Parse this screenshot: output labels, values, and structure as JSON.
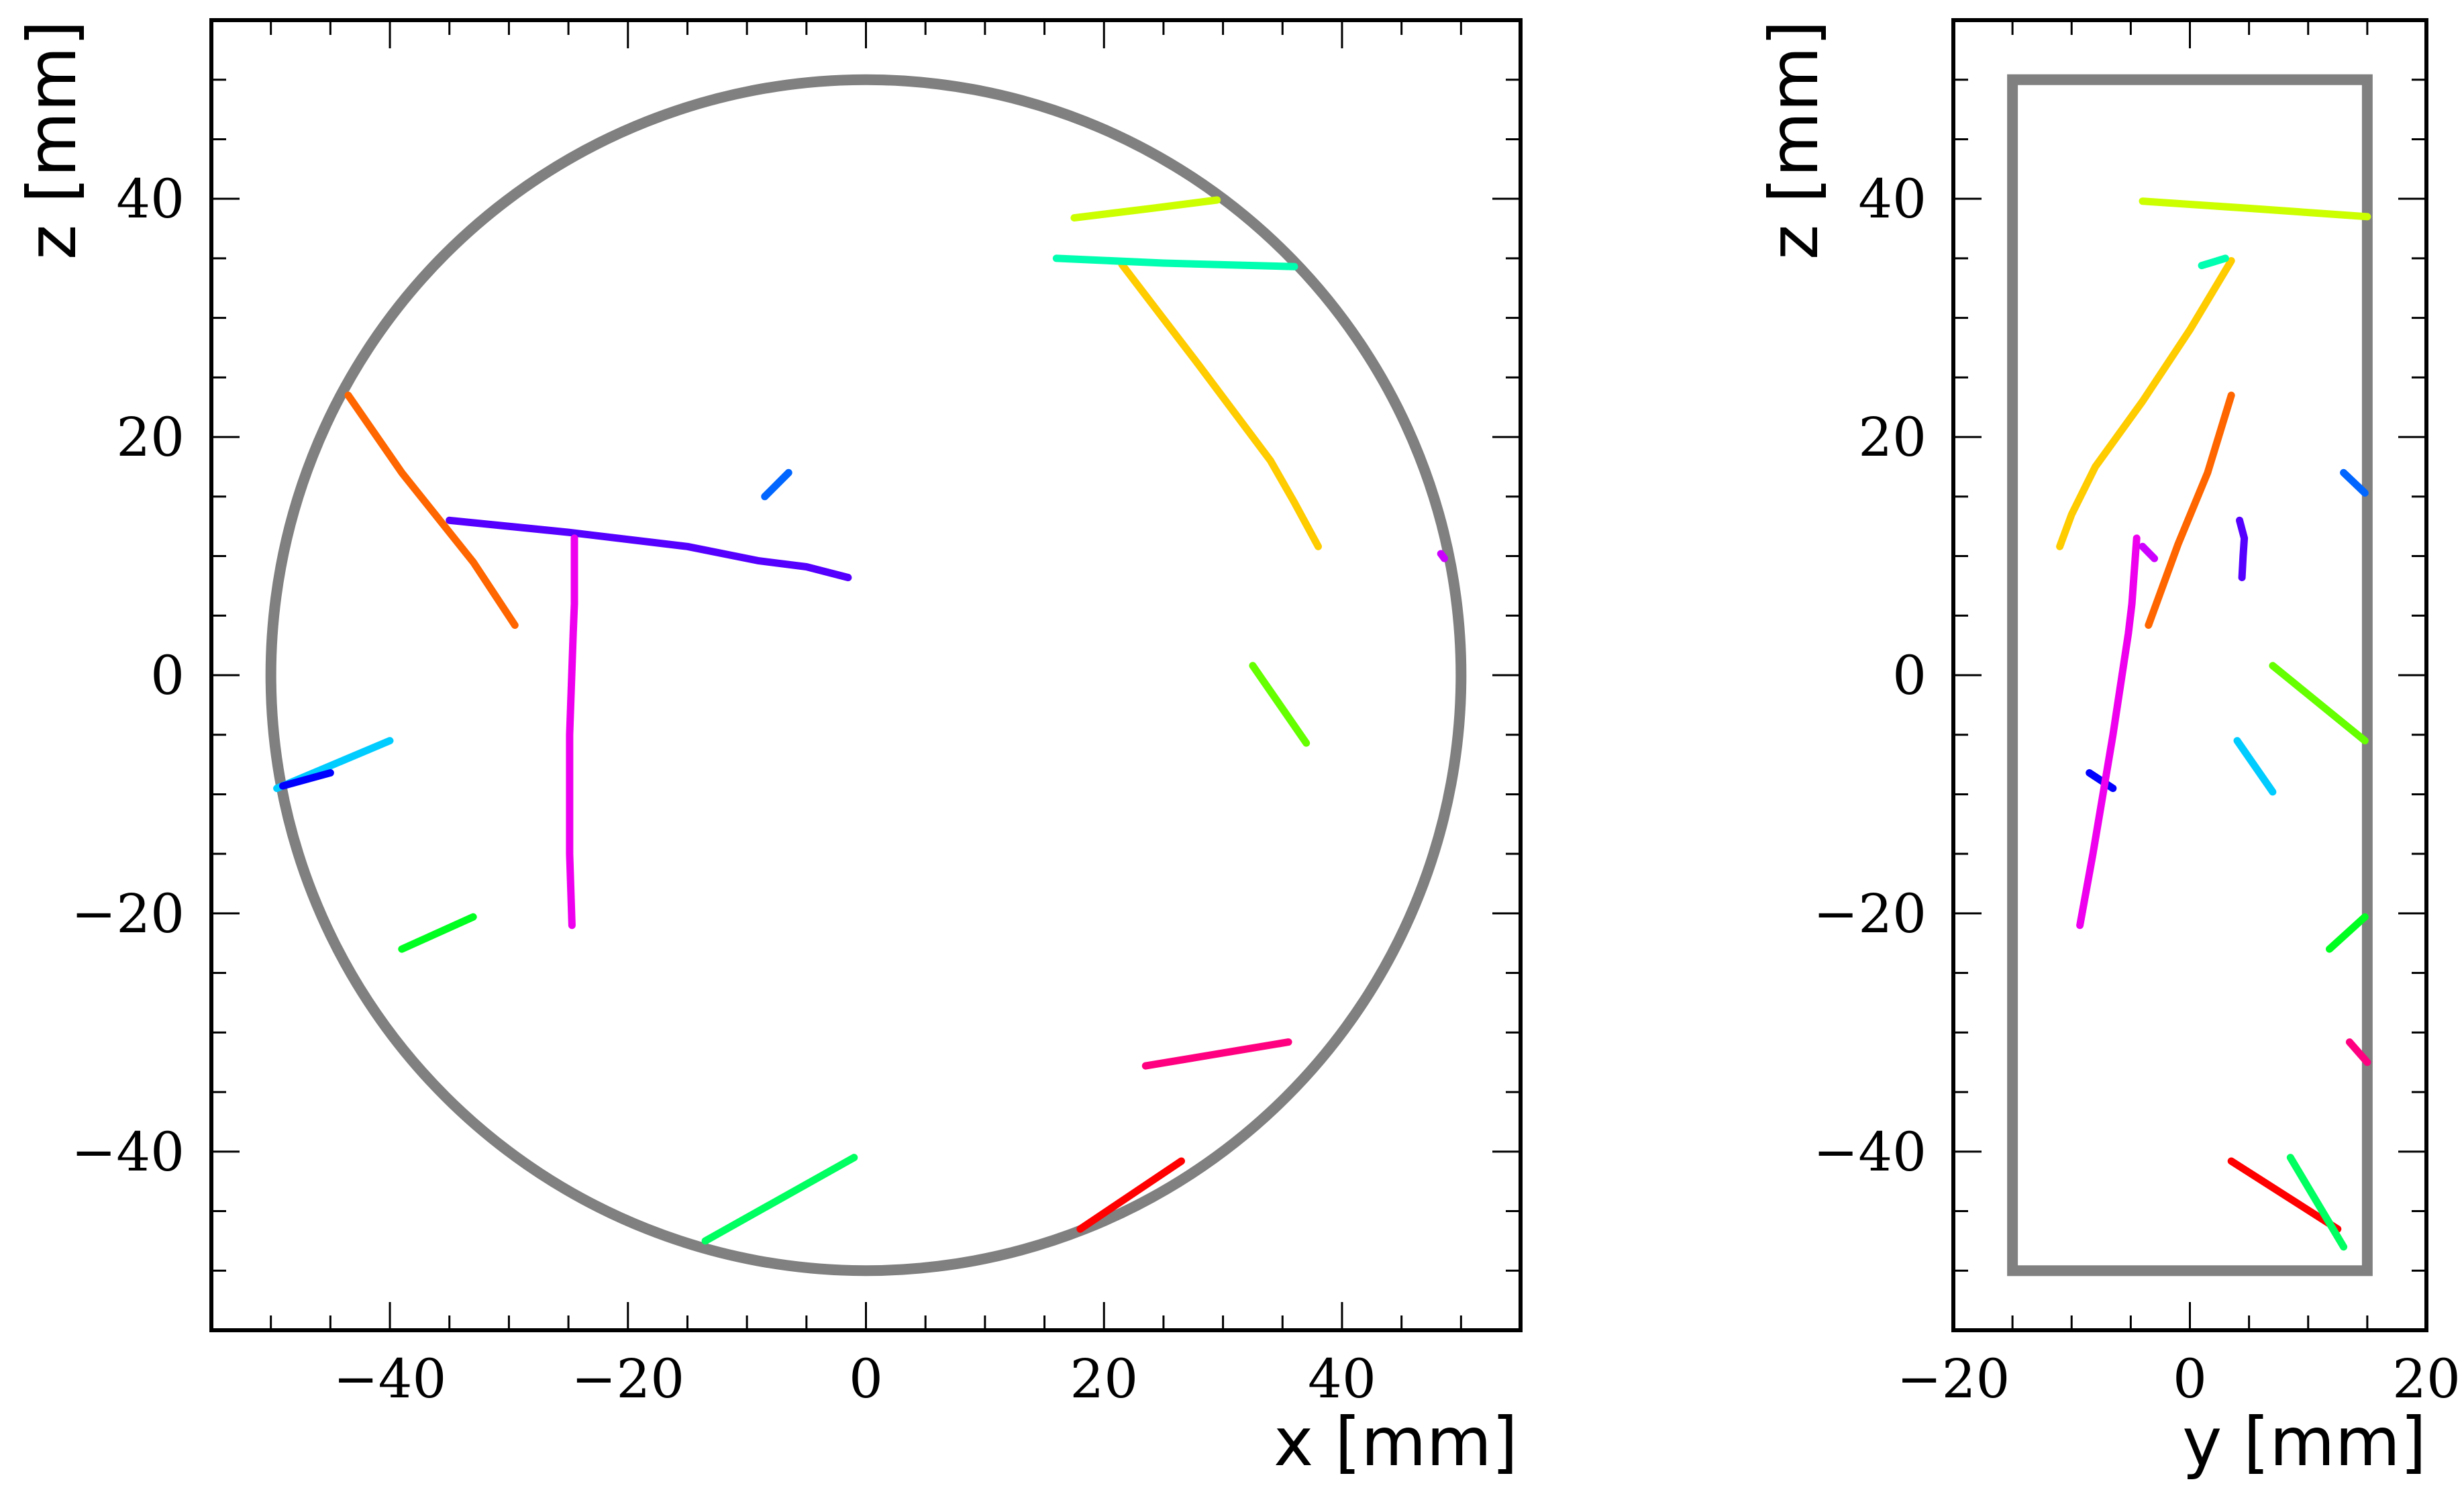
{
  "chart_data": [
    {
      "type": "scatter",
      "title": "",
      "xlabel": "x [mm]",
      "ylabel": "z [mm]",
      "xlim": [
        -55,
        55
      ],
      "ylim": [
        -55,
        55
      ],
      "xticks": [
        -40,
        -20,
        0,
        20,
        40
      ],
      "yticks": [
        -40,
        -20,
        0,
        20,
        40
      ],
      "xtick_labels": [
        "−40",
        "−20",
        "0",
        "20",
        "40"
      ],
      "ytick_labels": [
        "−40",
        "−20",
        "0",
        "20",
        "40"
      ],
      "grid": false,
      "boundary": {
        "shape": "circle",
        "center": [
          0,
          0
        ],
        "radius": 50,
        "color": "#808080"
      },
      "tracks": [
        {
          "color": "#ff0000",
          "points": [
            [
              18,
              -46.5
            ],
            [
              26.5,
              -40.8
            ]
          ]
        },
        {
          "color": "#ff0080",
          "points": [
            [
              23.5,
              -32.8
            ],
            [
              35.5,
              -30.8
            ]
          ]
        },
        {
          "color": "#00ff60",
          "points": [
            [
              -13.5,
              -47.5
            ],
            [
              -1,
              -40.5
            ]
          ]
        },
        {
          "color": "#00ff20",
          "points": [
            [
              -39,
              -23
            ],
            [
              -33,
              -20.3
            ]
          ]
        },
        {
          "color": "#00ccff",
          "points": [
            [
              -49.5,
              -9.5
            ],
            [
              -40,
              -5.5
            ]
          ]
        },
        {
          "color": "#0000ff",
          "points": [
            [
              -49,
              -9.3
            ],
            [
              -45,
              -8.2
            ]
          ]
        },
        {
          "color": "#66ff00",
          "points": [
            [
              32.5,
              0.8
            ],
            [
              37,
              -5.7
            ]
          ]
        },
        {
          "color": "#ff6600",
          "points": [
            [
              -43.5,
              23.5
            ],
            [
              -39,
              17
            ],
            [
              -33,
              9.5
            ],
            [
              -29.5,
              4.2
            ]
          ]
        },
        {
          "color": "#5500ff",
          "points": [
            [
              -35,
              13
            ],
            [
              -25,
              12
            ],
            [
              -15,
              10.8
            ],
            [
              -9,
              9.6
            ],
            [
              -5,
              9.1
            ],
            [
              -1.5,
              8.2
            ]
          ]
        },
        {
          "color": "#ee00ee",
          "points": [
            [
              -24.5,
              11.5
            ],
            [
              -24.5,
              6
            ],
            [
              -24.6,
              3.5
            ],
            [
              -24.9,
              -5
            ],
            [
              -24.9,
              -15
            ],
            [
              -24.7,
              -21
            ]
          ]
        },
        {
          "color": "#0066ff",
          "points": [
            [
              -8.5,
              15
            ],
            [
              -6.5,
              17
            ]
          ]
        },
        {
          "color": "#ffcc00",
          "points": [
            [
              21.5,
              34.5
            ],
            [
              28,
              26
            ],
            [
              34,
              18
            ],
            [
              36,
              14.5
            ],
            [
              38,
              10.8
            ]
          ]
        },
        {
          "color": "#00ffb0",
          "points": [
            [
              16,
              35
            ],
            [
              25,
              34.6
            ],
            [
              36,
              34.3
            ]
          ]
        },
        {
          "color": "#ccff00",
          "points": [
            [
              17.5,
              38.4
            ],
            [
              24,
              39.2
            ],
            [
              29.5,
              39.9
            ]
          ]
        },
        {
          "color": "#cc00ff",
          "points": [
            [
              48.3,
              10.2
            ],
            [
              48.6,
              9.8
            ]
          ]
        }
      ]
    },
    {
      "type": "scatter",
      "title": "",
      "xlabel": "y [mm]",
      "ylabel": "z [mm]",
      "xlim": [
        -20,
        20
      ],
      "ylim": [
        -55,
        55
      ],
      "xticks": [
        -20,
        0,
        20
      ],
      "yticks": [
        -40,
        -20,
        0,
        20,
        40
      ],
      "xtick_labels": [
        "−20",
        "0",
        "20"
      ],
      "ytick_labels": [
        "−40",
        "−20",
        "0",
        "20",
        "40"
      ],
      "grid": false,
      "boundary": {
        "shape": "rectangle",
        "x": [
          -15,
          15
        ],
        "z": [
          -50,
          50
        ],
        "color": "#808080"
      },
      "tracks": [
        {
          "color": "#ff0000",
          "points": [
            [
              3.5,
              -40.8
            ],
            [
              12.5,
              -46.5
            ]
          ]
        },
        {
          "color": "#00ff60",
          "points": [
            [
              8.5,
              -40.5
            ],
            [
              13,
              -48
            ]
          ]
        },
        {
          "color": "#ff0080",
          "points": [
            [
              13.5,
              -30.8
            ],
            [
              15,
              -32.5
            ]
          ]
        },
        {
          "color": "#00ff20",
          "points": [
            [
              11.8,
              -23
            ],
            [
              14.8,
              -20.3
            ]
          ]
        },
        {
          "color": "#00ccff",
          "points": [
            [
              4,
              -5.5
            ],
            [
              7,
              -9.8
            ]
          ]
        },
        {
          "color": "#0000ff",
          "points": [
            [
              -8.5,
              -8.2
            ],
            [
              -6.5,
              -9.5
            ]
          ]
        },
        {
          "color": "#66ff00",
          "points": [
            [
              7,
              0.8
            ],
            [
              14.8,
              -5.5
            ]
          ]
        },
        {
          "color": "#ee00ee",
          "points": [
            [
              -4.5,
              11.5
            ],
            [
              -4.9,
              6
            ],
            [
              -5.2,
              3.5
            ],
            [
              -6.5,
              -5
            ],
            [
              -8.2,
              -15
            ],
            [
              -9.3,
              -21
            ]
          ]
        },
        {
          "color": "#ff6600",
          "points": [
            [
              -3.5,
              4.2
            ],
            [
              -1,
              11
            ],
            [
              1.5,
              17
            ],
            [
              3.5,
              23.5
            ]
          ]
        },
        {
          "color": "#cc00ff",
          "points": [
            [
              -4,
              10.8
            ],
            [
              -3,
              9.8
            ]
          ]
        },
        {
          "color": "#5500ff",
          "points": [
            [
              4.2,
              13
            ],
            [
              4.6,
              11.5
            ],
            [
              4.5,
              10
            ],
            [
              4.4,
              8.2
            ]
          ]
        },
        {
          "color": "#ffcc00",
          "points": [
            [
              -11,
              10.8
            ],
            [
              -10,
              13.5
            ],
            [
              -8,
              17.5
            ],
            [
              -4,
              23
            ],
            [
              0,
              29
            ],
            [
              3.5,
              34.8
            ]
          ]
        },
        {
          "color": "#00ffb0",
          "points": [
            [
              1,
              34.4
            ],
            [
              3,
              35
            ]
          ]
        },
        {
          "color": "#0066ff",
          "points": [
            [
              13,
              17
            ],
            [
              14.8,
              15.3
            ]
          ]
        },
        {
          "color": "#ccff00",
          "points": [
            [
              -4,
              39.8
            ],
            [
              5,
              39.2
            ],
            [
              15,
              38.5
            ]
          ]
        }
      ]
    }
  ]
}
